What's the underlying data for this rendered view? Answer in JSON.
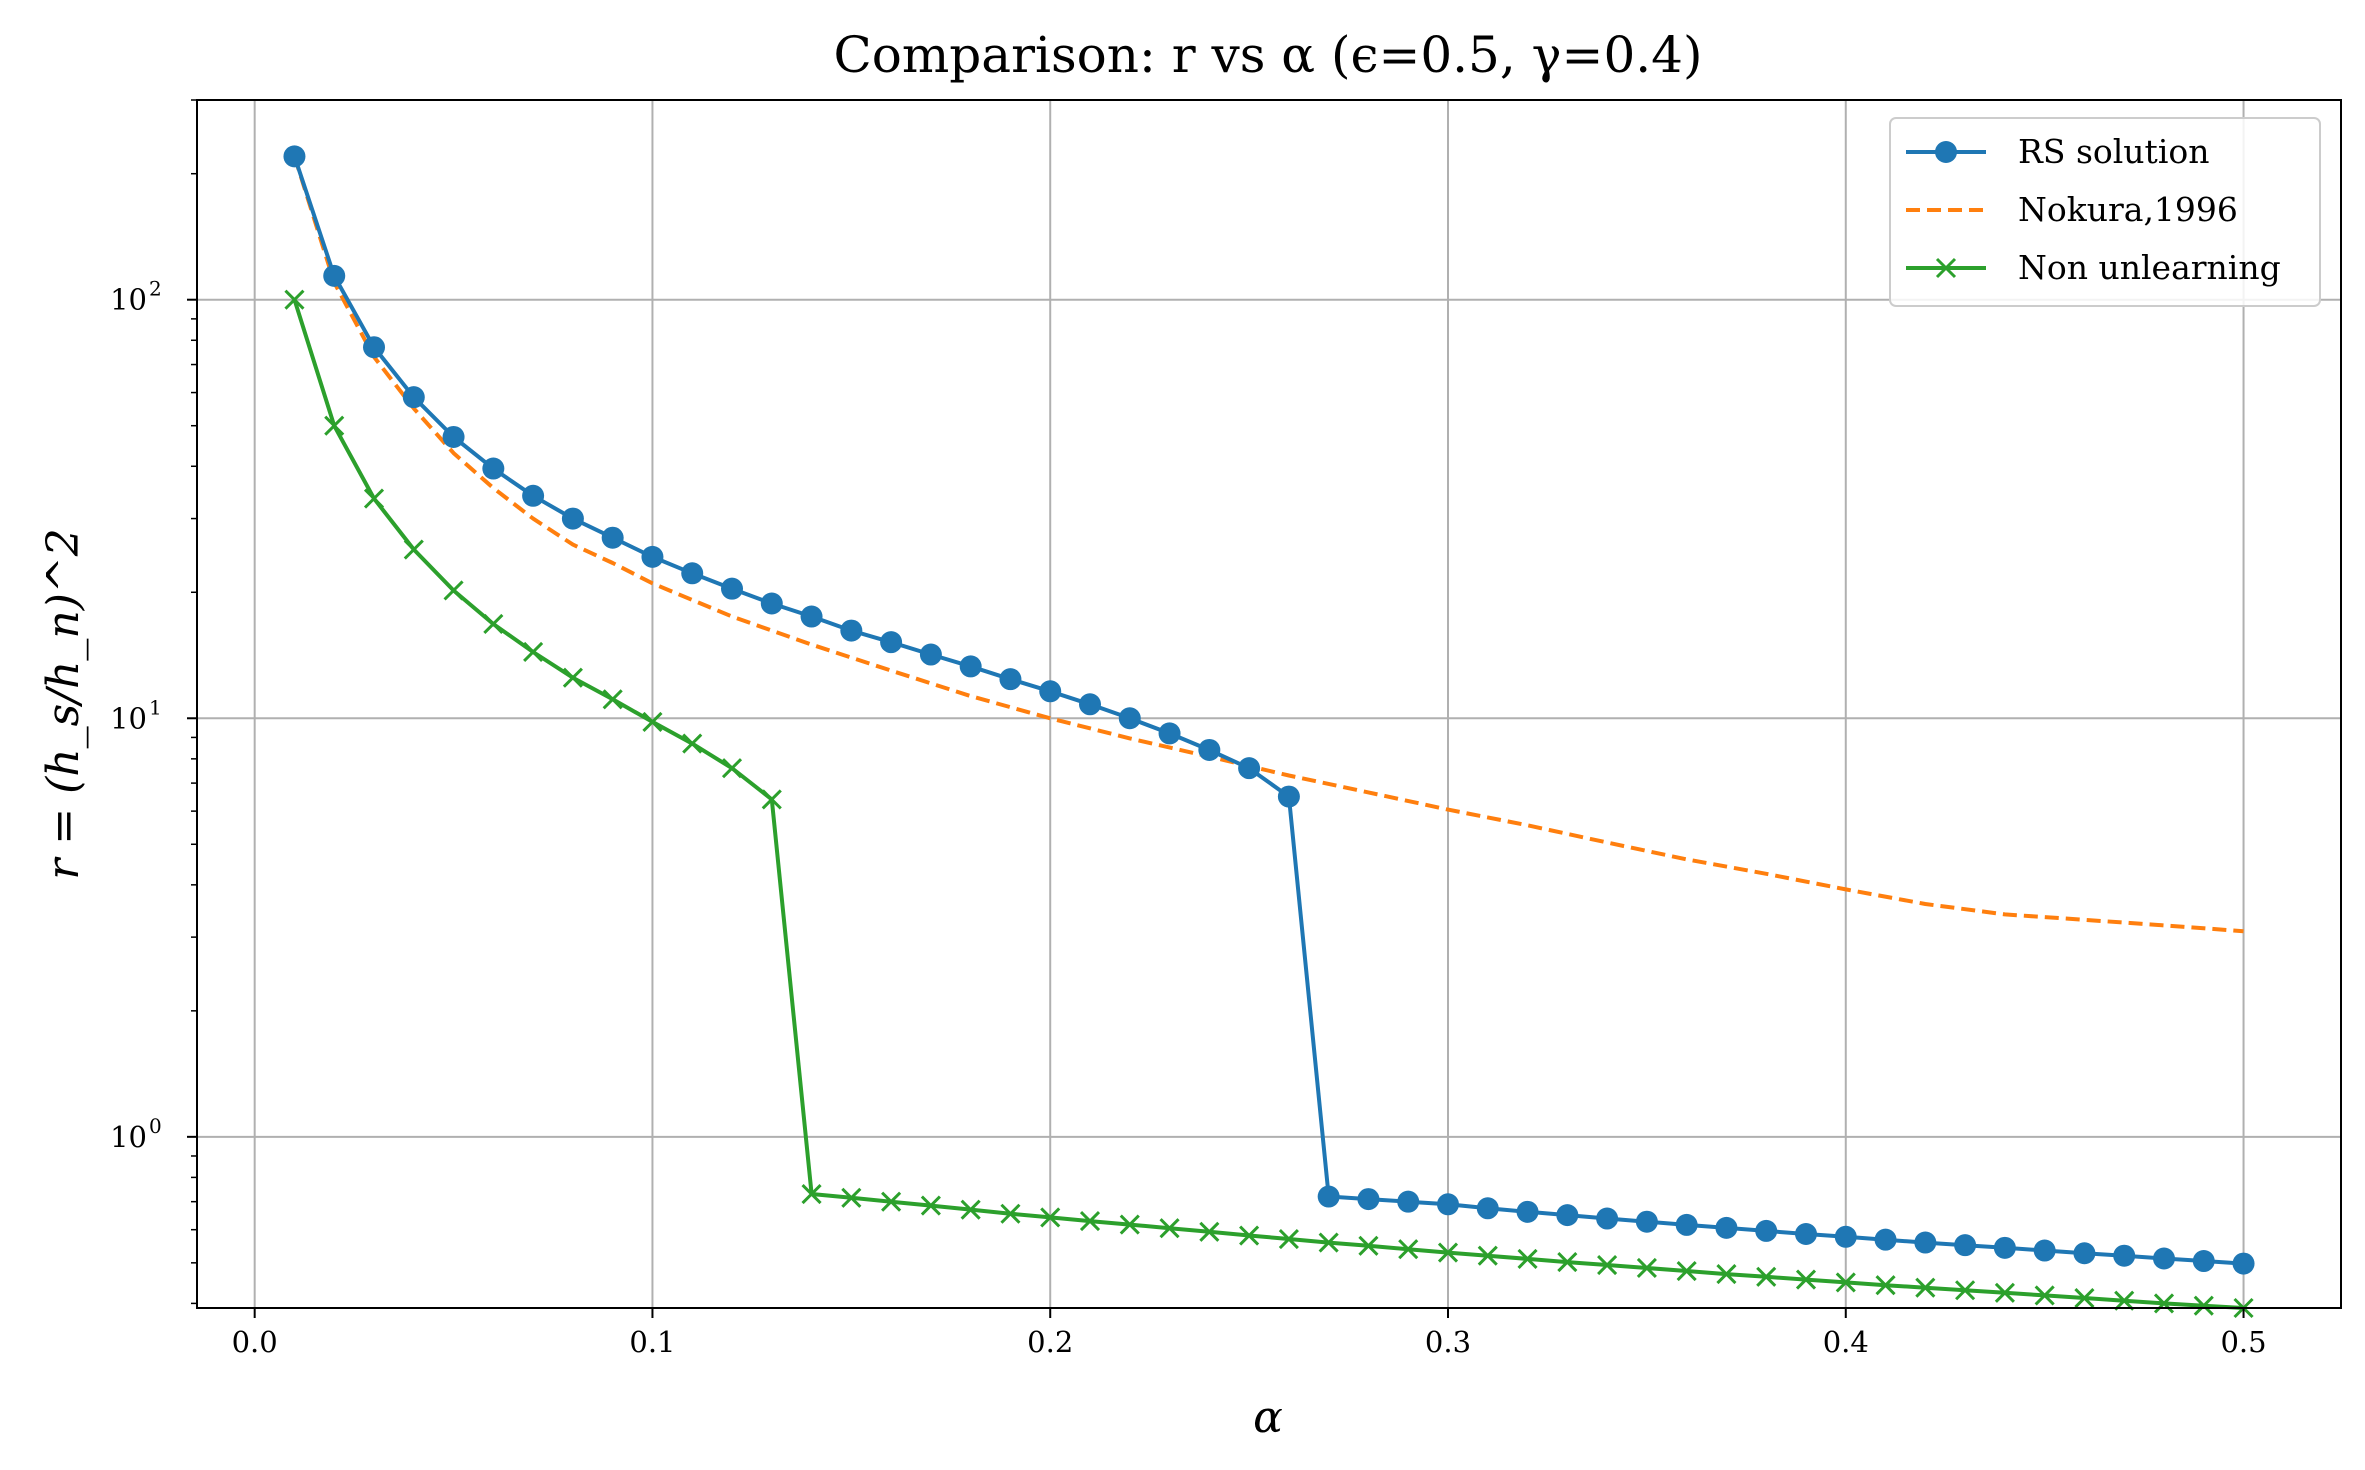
{
  "chart_data": {
    "type": "line",
    "title": "Comparison: r vs α (ϵ=0.5, γ=0.4)",
    "xlabel": "α",
    "ylabel": "r = (h_s/h_n)^2",
    "xscale": "linear",
    "yscale": "log",
    "xlim": [
      -0.0145,
      0.5245
    ],
    "ylim": [
      0.39,
      300
    ],
    "xticks": [
      0.0,
      0.1,
      0.2,
      0.3,
      0.4,
      0.5
    ],
    "xtick_labels": [
      "0.0",
      "0.1",
      "0.2",
      "0.3",
      "0.4",
      "0.5"
    ],
    "yticks": [
      1,
      10,
      100
    ],
    "grid": true,
    "legend_position": "top-right",
    "series": [
      {
        "name": "RS solution",
        "color": "#1f77b4",
        "line_style": "solid",
        "marker": "circle",
        "x": [
          0.01,
          0.02,
          0.03,
          0.04,
          0.05,
          0.06,
          0.07,
          0.08,
          0.09,
          0.1,
          0.11,
          0.12,
          0.13,
          0.14,
          0.15,
          0.16,
          0.17,
          0.18,
          0.19,
          0.2,
          0.21,
          0.22,
          0.23,
          0.24,
          0.25,
          0.26,
          0.27,
          0.28,
          0.29,
          0.3,
          0.31,
          0.32,
          0.33,
          0.34,
          0.35,
          0.36,
          0.37,
          0.38,
          0.39,
          0.4,
          0.41,
          0.42,
          0.43,
          0.44,
          0.45,
          0.46,
          0.47,
          0.48,
          0.49,
          0.5
        ],
        "y": [
          220,
          114,
          77,
          58.5,
          47,
          39.5,
          34,
          30,
          27,
          24.3,
          22.2,
          20.4,
          18.8,
          17.5,
          16.2,
          15.2,
          14.2,
          13.3,
          12.4,
          11.6,
          10.8,
          10.0,
          9.2,
          8.4,
          7.6,
          6.5,
          0.72,
          0.71,
          0.7,
          0.69,
          0.675,
          0.662,
          0.65,
          0.638,
          0.627,
          0.616,
          0.606,
          0.596,
          0.586,
          0.577,
          0.568,
          0.559,
          0.551,
          0.543,
          0.535,
          0.527,
          0.52,
          0.512,
          0.505,
          0.498
        ]
      },
      {
        "name": "Nokura,1996",
        "color": "#ff7f0e",
        "line_style": "dashed",
        "marker": "none",
        "x": [
          0.01,
          0.02,
          0.03,
          0.04,
          0.05,
          0.06,
          0.07,
          0.08,
          0.09,
          0.1,
          0.12,
          0.14,
          0.16,
          0.18,
          0.2,
          0.22,
          0.24,
          0.26,
          0.28,
          0.3,
          0.32,
          0.34,
          0.36,
          0.38,
          0.4,
          0.42,
          0.44,
          0.46,
          0.48,
          0.5
        ],
        "y": [
          220,
          110,
          73,
          55,
          43,
          35.5,
          30,
          26,
          23.5,
          21,
          17.5,
          15,
          13,
          11.3,
          10,
          8.95,
          8.1,
          7.3,
          6.65,
          6.05,
          5.55,
          5.05,
          4.6,
          4.25,
          3.9,
          3.6,
          3.4,
          3.3,
          3.2,
          3.1
        ]
      },
      {
        "name": "Non unlearning",
        "color": "#2ca02c",
        "line_style": "solid",
        "marker": "x",
        "x": [
          0.01,
          0.02,
          0.03,
          0.04,
          0.05,
          0.06,
          0.07,
          0.08,
          0.09,
          0.1,
          0.11,
          0.12,
          0.13,
          0.14,
          0.15,
          0.16,
          0.17,
          0.18,
          0.19,
          0.2,
          0.21,
          0.22,
          0.23,
          0.24,
          0.25,
          0.26,
          0.27,
          0.28,
          0.29,
          0.3,
          0.31,
          0.32,
          0.33,
          0.34,
          0.35,
          0.36,
          0.37,
          0.38,
          0.39,
          0.4,
          0.41,
          0.42,
          0.43,
          0.44,
          0.45,
          0.46,
          0.47,
          0.48,
          0.49,
          0.5
        ],
        "y": [
          100,
          50,
          33.5,
          25.3,
          20.2,
          16.8,
          14.4,
          12.5,
          11.1,
          9.8,
          8.7,
          7.6,
          6.4,
          0.73,
          0.715,
          0.7,
          0.685,
          0.67,
          0.655,
          0.642,
          0.629,
          0.617,
          0.605,
          0.593,
          0.581,
          0.57,
          0.559,
          0.549,
          0.539,
          0.529,
          0.52,
          0.511,
          0.502,
          0.494,
          0.486,
          0.478,
          0.47,
          0.463,
          0.456,
          0.449,
          0.442,
          0.436,
          0.43,
          0.424,
          0.418,
          0.412,
          0.406,
          0.4,
          0.395,
          0.39
        ]
      }
    ]
  }
}
